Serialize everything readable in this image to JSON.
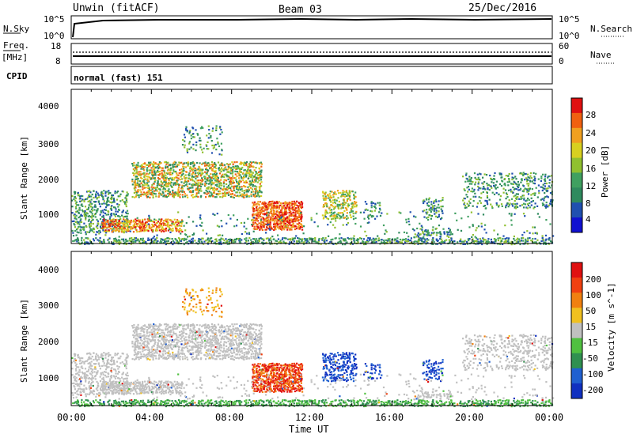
{
  "header": {
    "title": "Unwin (fitACF)",
    "beam": "Beam 03",
    "date": "25/Dec/2016"
  },
  "noise_panel": {
    "left_label": "N.Sky",
    "right_label": "N.Search",
    "left_ticks": [
      "10^5",
      "10^0"
    ],
    "right_ticks": [
      "10^5",
      "10^0"
    ]
  },
  "freq_panel": {
    "left_label_1": "Freq.",
    "left_label_2": "[MHz]",
    "right_label": "Nave",
    "left_ticks": [
      "18",
      "8"
    ],
    "right_ticks": [
      "60",
      "0"
    ]
  },
  "cpid_panel": {
    "label": "CPID",
    "text": "normal (fast) 151"
  },
  "chart_data": [
    {
      "type": "heatmap",
      "name": "power",
      "ylabel": "Slant Range [km]",
      "yticks": [
        "4000",
        "3000",
        "2000",
        "1000"
      ],
      "yrange": [
        200,
        4500
      ],
      "xrange_hours": [
        0,
        24
      ],
      "colorbar": {
        "label": "Power [dB]",
        "ticks": [
          "28",
          "24",
          "20",
          "16",
          "12",
          "8",
          "4"
        ],
        "colors": [
          "#1010d0",
          "#2050b0",
          "#2f8a5e",
          "#40a060",
          "#90c030",
          "#d8d020",
          "#f0a020",
          "#f06010",
          "#e01010"
        ]
      }
    },
    {
      "type": "heatmap",
      "name": "velocity",
      "ylabel": "Slant Range [km]",
      "yticks": [
        "4000",
        "3000",
        "2000",
        "1000"
      ],
      "yrange": [
        200,
        4500
      ],
      "xrange_hours": [
        0,
        24
      ],
      "colorbar": {
        "label": "Velocity [m s^-1]",
        "ticks": [
          "200",
          "100",
          "50",
          "15",
          "-15",
          "-50",
          "-100",
          "-200"
        ],
        "colors": [
          "#1030c0",
          "#2060d0",
          "#309050",
          "#50c040",
          "#c0c0c0",
          "#f0c020",
          "#f08010",
          "#f04010",
          "#e01010"
        ]
      }
    }
  ],
  "xaxis": {
    "ticks": [
      "00:00",
      "04:00",
      "08:00",
      "12:00",
      "16:00",
      "20:00",
      "00:00"
    ],
    "label": "Time UT"
  }
}
